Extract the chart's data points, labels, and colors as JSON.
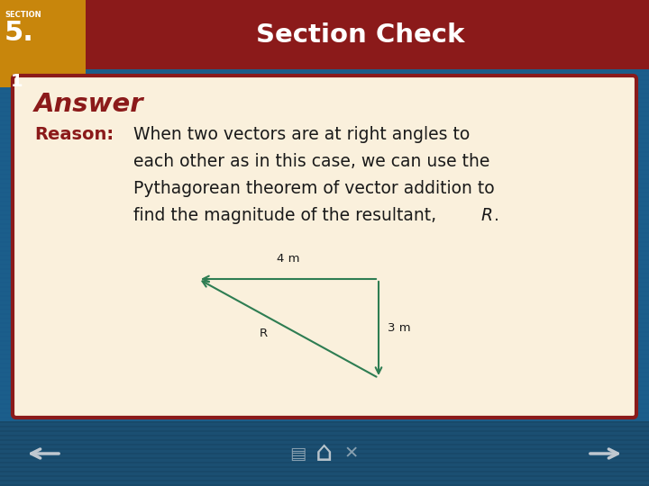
{
  "header_bg_color": "#8B1A1A",
  "header_text": "Section Check",
  "header_text_color": "#FFFFFF",
  "section_label_small": "SECTION",
  "section_label_big": "5.",
  "section_number": "1",
  "section_badge_color": "#C8860C",
  "body_bg_color": "#FAF0DC",
  "body_border_color": "#8B1A1A",
  "outer_bg_color": "#1B5E8B",
  "answer_text": "Answer",
  "answer_color": "#8B1A1A",
  "reason_label": "Reason:",
  "reason_label_color": "#8B1A1A",
  "reason_text_line1": "When two vectors are at right angles to",
  "reason_text_line2": "each other as in this case, we can use the",
  "reason_text_line3": "Pythagorean theorem of vector addition to",
  "reason_text_line4": "find the magnitude of the resultant, ⁣R.",
  "reason_text_color": "#1a1a1a",
  "vector_color": "#2E7D52",
  "label_4m": "4 m",
  "label_3m": "3 m",
  "label_R": "R",
  "footer_bg_color": "#1B4F72"
}
